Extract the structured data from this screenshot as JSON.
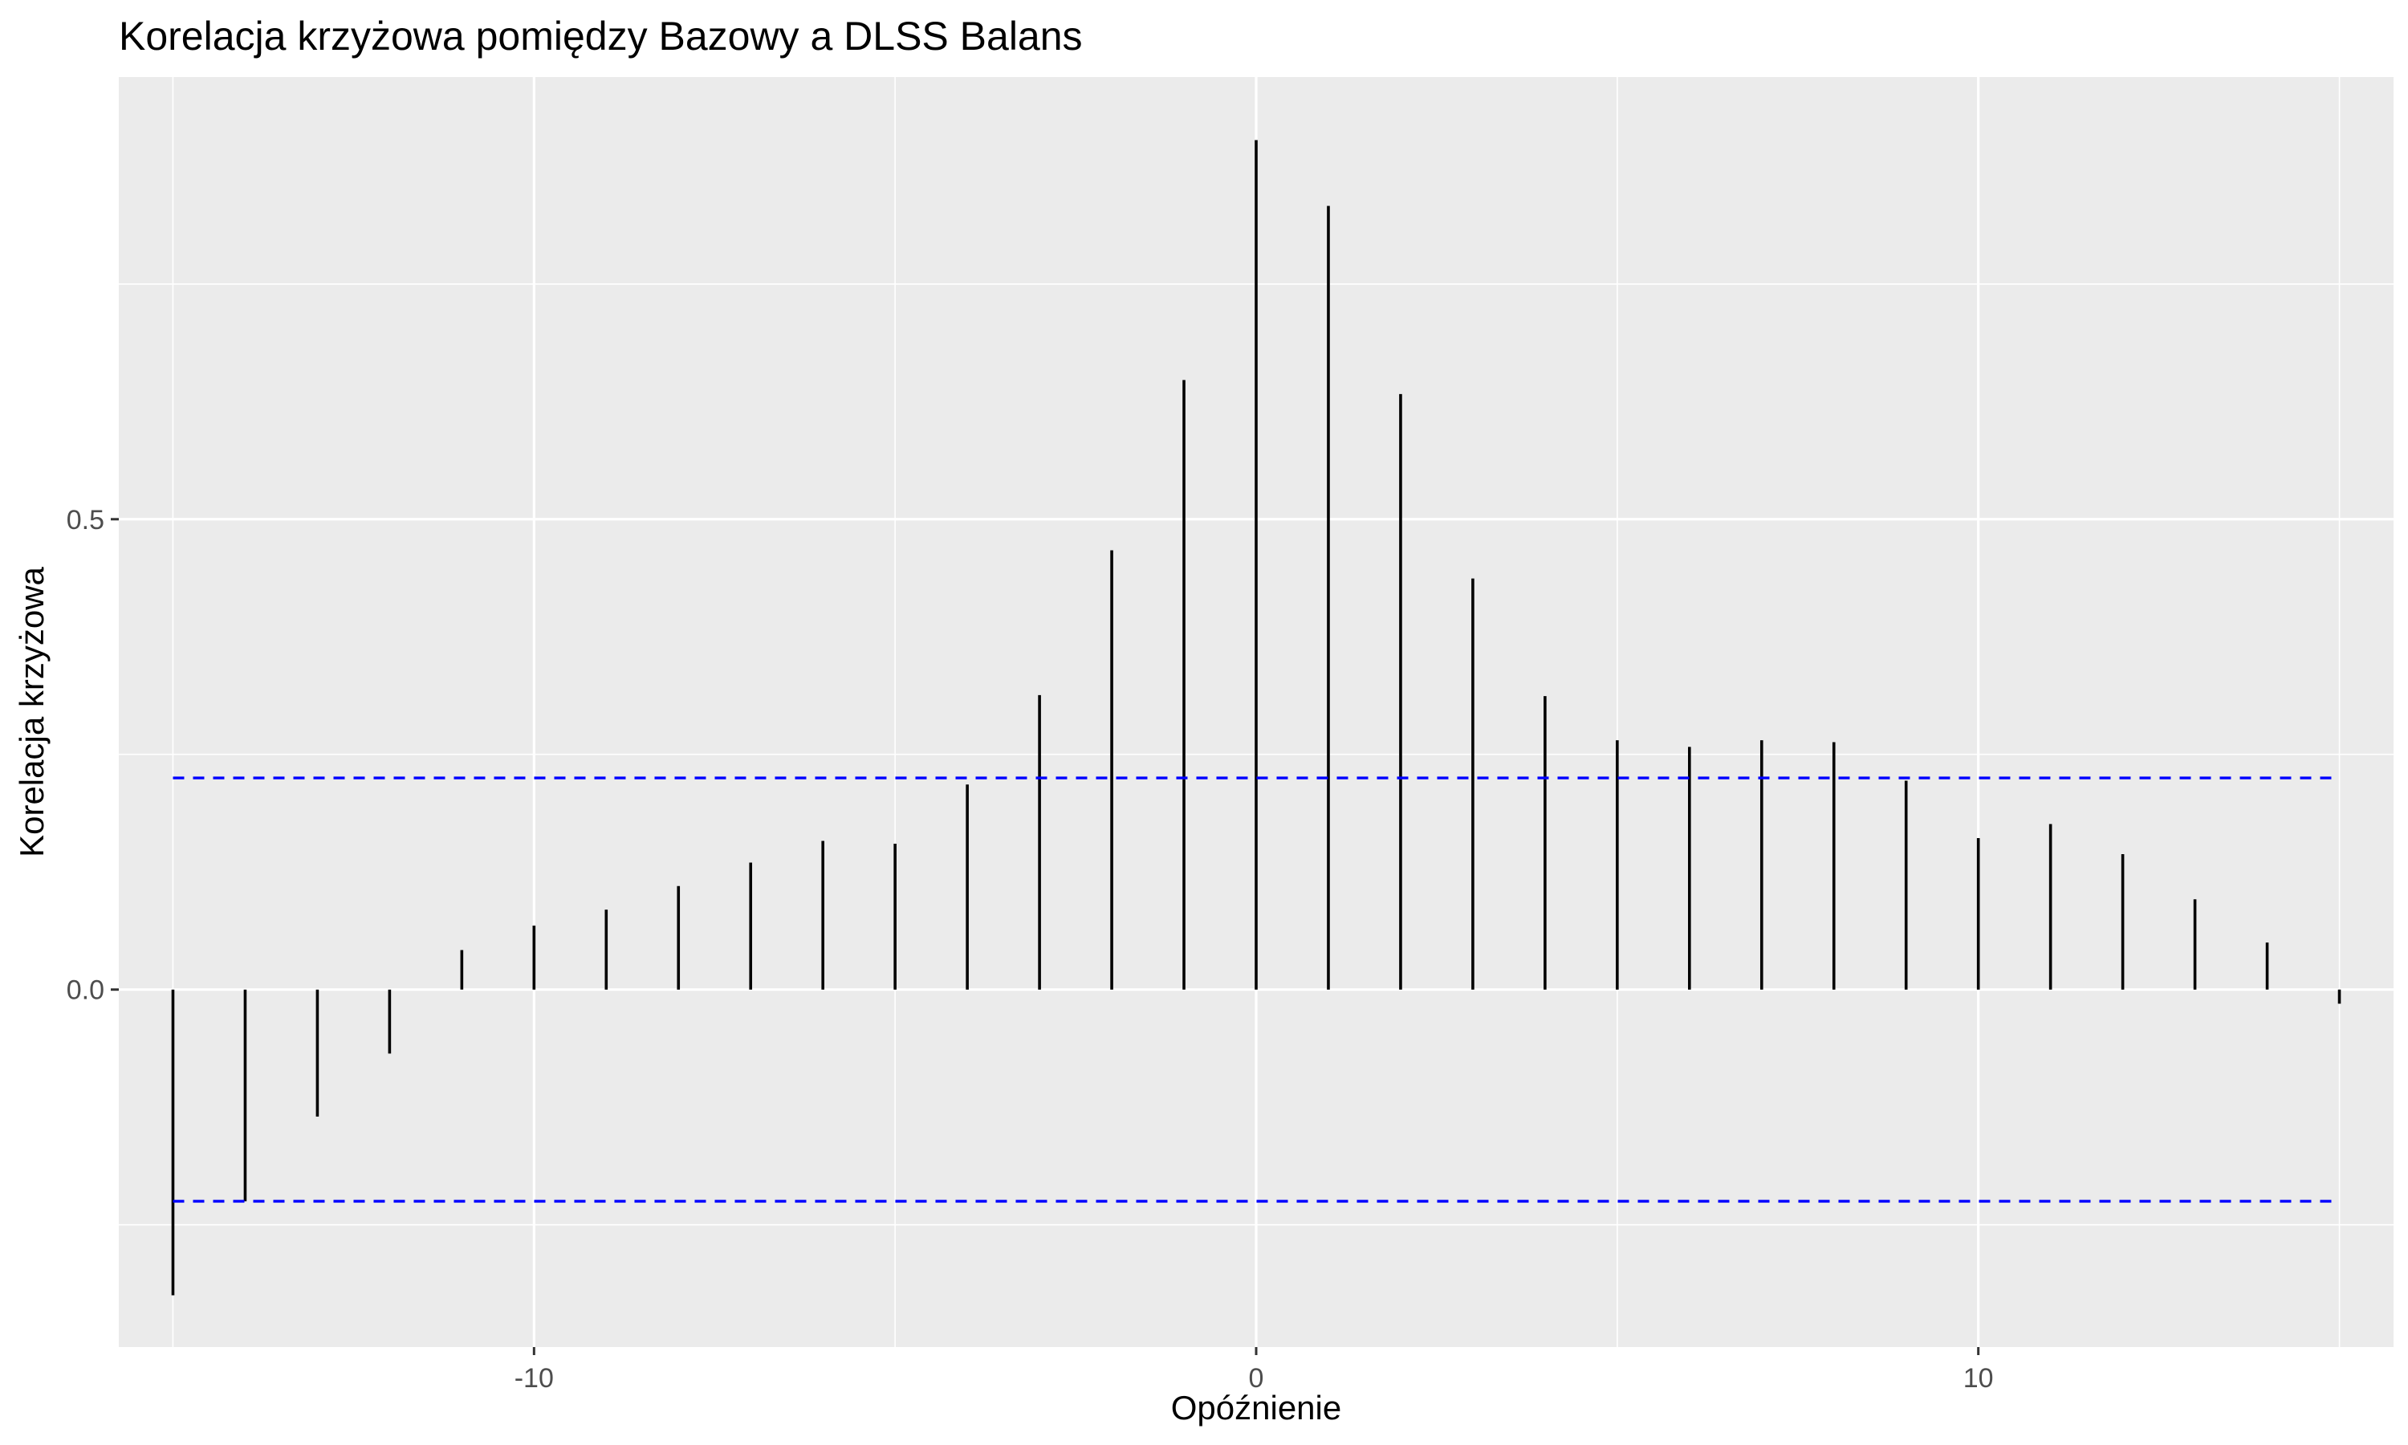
{
  "chart_data": {
    "type": "bar",
    "title": "Korelacja krzyżowa pomiędzy Bazowy a DLSS Balans",
    "xlabel": "Opóźnienie",
    "ylabel": "Korelacja krzyżowa",
    "xlim": [
      -15.75,
      15.75
    ],
    "ylim": [
      -0.38,
      0.97
    ],
    "x_ticks": [
      -10,
      0,
      10
    ],
    "x_tick_labels": [
      "-10",
      "0",
      "10"
    ],
    "y_ticks": [
      0.0,
      0.5
    ],
    "y_tick_labels": [
      "0.0",
      "0.5"
    ],
    "grid": true,
    "x": [
      -15,
      -14,
      -13,
      -12,
      -11,
      -10,
      -9,
      -8,
      -7,
      -6,
      -5,
      -4,
      -3,
      -2,
      -1,
      0,
      1,
      2,
      3,
      4,
      5,
      6,
      7,
      8,
      9,
      10,
      11,
      12,
      13,
      14,
      15
    ],
    "values": [
      -0.325,
      -0.225,
      -0.135,
      -0.068,
      0.042,
      0.068,
      0.085,
      0.11,
      0.135,
      0.158,
      0.155,
      0.218,
      0.313,
      0.467,
      0.648,
      0.903,
      0.833,
      0.633,
      0.437,
      0.312,
      0.265,
      0.258,
      0.265,
      0.263,
      0.222,
      0.161,
      0.176,
      0.144,
      0.096,
      0.05,
      -0.015
    ],
    "confidence_bounds": [
      0.225,
      -0.225
    ],
    "colors": {
      "panel_background": "#ebebeb",
      "grid": "#ffffff",
      "segments": "#000000",
      "confidence_lines": "#0000ff"
    }
  }
}
